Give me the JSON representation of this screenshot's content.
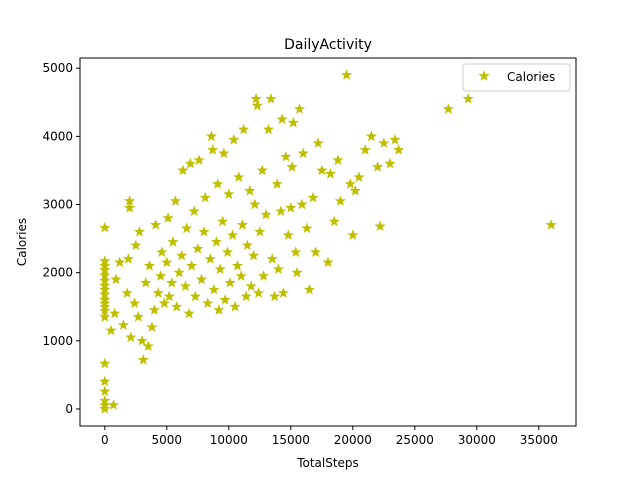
{
  "chart_data": {
    "type": "scatter",
    "title": "DailyActivity",
    "xlabel": "TotalSteps",
    "ylabel": "Calories",
    "xlim": [
      -2000,
      38000
    ],
    "ylim": [
      -250,
      5150
    ],
    "xticks": [
      0,
      5000,
      10000,
      15000,
      20000,
      25000,
      30000,
      35000
    ],
    "yticks": [
      0,
      1000,
      2000,
      3000,
      4000,
      5000
    ],
    "grid": false,
    "legend": {
      "position": "top-right",
      "entries": [
        "Calories"
      ]
    },
    "marker": "star",
    "color": "#bfbf00",
    "series": [
      {
        "name": "Calories",
        "points": [
          [
            0,
            0
          ],
          [
            0,
            52
          ],
          [
            0,
            120
          ],
          [
            0,
            257
          ],
          [
            0,
            403
          ],
          [
            0,
            665
          ],
          [
            0,
            1347
          ],
          [
            0,
            1440
          ],
          [
            0,
            1496
          ],
          [
            0,
            1548
          ],
          [
            0,
            1600
          ],
          [
            0,
            1680
          ],
          [
            0,
            1750
          ],
          [
            0,
            1810
          ],
          [
            0,
            1880
          ],
          [
            0,
            1960
          ],
          [
            0,
            2040
          ],
          [
            0,
            2100
          ],
          [
            0,
            2170
          ],
          [
            0,
            2660
          ],
          [
            700,
            57
          ],
          [
            500,
            1150
          ],
          [
            800,
            1400
          ],
          [
            900,
            1900
          ],
          [
            1200,
            2150
          ],
          [
            1500,
            1230
          ],
          [
            1800,
            1700
          ],
          [
            1900,
            2200
          ],
          [
            2000,
            3050
          ],
          [
            2000,
            2950
          ],
          [
            2100,
            1050
          ],
          [
            2400,
            1550
          ],
          [
            2500,
            2400
          ],
          [
            2700,
            1350
          ],
          [
            2800,
            2600
          ],
          [
            3000,
            1000
          ],
          [
            3100,
            720
          ],
          [
            3300,
            1850
          ],
          [
            3500,
            920
          ],
          [
            3600,
            2100
          ],
          [
            3800,
            1200
          ],
          [
            4000,
            1450
          ],
          [
            4100,
            2700
          ],
          [
            4300,
            1700
          ],
          [
            4500,
            1950
          ],
          [
            4600,
            2300
          ],
          [
            4800,
            1550
          ],
          [
            5000,
            2150
          ],
          [
            5100,
            2800
          ],
          [
            5200,
            1650
          ],
          [
            5400,
            1850
          ],
          [
            5500,
            2450
          ],
          [
            5700,
            3050
          ],
          [
            5800,
            1500
          ],
          [
            6000,
            2000
          ],
          [
            6200,
            2250
          ],
          [
            6300,
            3500
          ],
          [
            6500,
            1800
          ],
          [
            6600,
            2650
          ],
          [
            6800,
            1400
          ],
          [
            6900,
            3600
          ],
          [
            7000,
            2100
          ],
          [
            7200,
            2900
          ],
          [
            7300,
            1650
          ],
          [
            7500,
            2350
          ],
          [
            7600,
            3650
          ],
          [
            7800,
            1900
          ],
          [
            8000,
            2600
          ],
          [
            8100,
            3100
          ],
          [
            8300,
            1550
          ],
          [
            8500,
            2200
          ],
          [
            8600,
            4000
          ],
          [
            8700,
            3800
          ],
          [
            8800,
            1750
          ],
          [
            9000,
            2450
          ],
          [
            9100,
            3300
          ],
          [
            9200,
            1450
          ],
          [
            9300,
            2050
          ],
          [
            9500,
            2750
          ],
          [
            9600,
            3750
          ],
          [
            9700,
            1600
          ],
          [
            9900,
            2300
          ],
          [
            10000,
            3150
          ],
          [
            10100,
            1850
          ],
          [
            10300,
            2550
          ],
          [
            10400,
            3950
          ],
          [
            10500,
            1500
          ],
          [
            10700,
            2100
          ],
          [
            10800,
            3400
          ],
          [
            11000,
            1950
          ],
          [
            11100,
            2700
          ],
          [
            11200,
            4100
          ],
          [
            11400,
            1650
          ],
          [
            11500,
            2400
          ],
          [
            11700,
            3200
          ],
          [
            11800,
            1800
          ],
          [
            12000,
            2250
          ],
          [
            12100,
            3000
          ],
          [
            12200,
            4550
          ],
          [
            12300,
            4450
          ],
          [
            12400,
            1700
          ],
          [
            12500,
            2600
          ],
          [
            12700,
            3500
          ],
          [
            12800,
            1950
          ],
          [
            13000,
            2850
          ],
          [
            13200,
            4100
          ],
          [
            13400,
            4550
          ],
          [
            13500,
            2200
          ],
          [
            13700,
            1650
          ],
          [
            13900,
            3300
          ],
          [
            14000,
            2050
          ],
          [
            14200,
            2900
          ],
          [
            14300,
            4250
          ],
          [
            14400,
            1700
          ],
          [
            14600,
            3700
          ],
          [
            14800,
            2550
          ],
          [
            15000,
            2950
          ],
          [
            15100,
            3550
          ],
          [
            15200,
            4200
          ],
          [
            15400,
            2300
          ],
          [
            15500,
            2000
          ],
          [
            15700,
            4400
          ],
          [
            15900,
            3000
          ],
          [
            16000,
            3750
          ],
          [
            16300,
            2650
          ],
          [
            16500,
            1750
          ],
          [
            16800,
            3100
          ],
          [
            17000,
            2300
          ],
          [
            17200,
            3900
          ],
          [
            17500,
            3500
          ],
          [
            18000,
            2150
          ],
          [
            18200,
            3450
          ],
          [
            18500,
            2750
          ],
          [
            18800,
            3650
          ],
          [
            19000,
            3050
          ],
          [
            19500,
            4900
          ],
          [
            19800,
            3300
          ],
          [
            20000,
            2550
          ],
          [
            20200,
            3200
          ],
          [
            20500,
            3400
          ],
          [
            21000,
            3800
          ],
          [
            21500,
            4000
          ],
          [
            22000,
            3550
          ],
          [
            22200,
            2680
          ],
          [
            22500,
            3900
          ],
          [
            23000,
            3600
          ],
          [
            23400,
            3950
          ],
          [
            23700,
            3800
          ],
          [
            27700,
            4400
          ],
          [
            29300,
            4550
          ],
          [
            36000,
            2700
          ]
        ]
      }
    ]
  }
}
